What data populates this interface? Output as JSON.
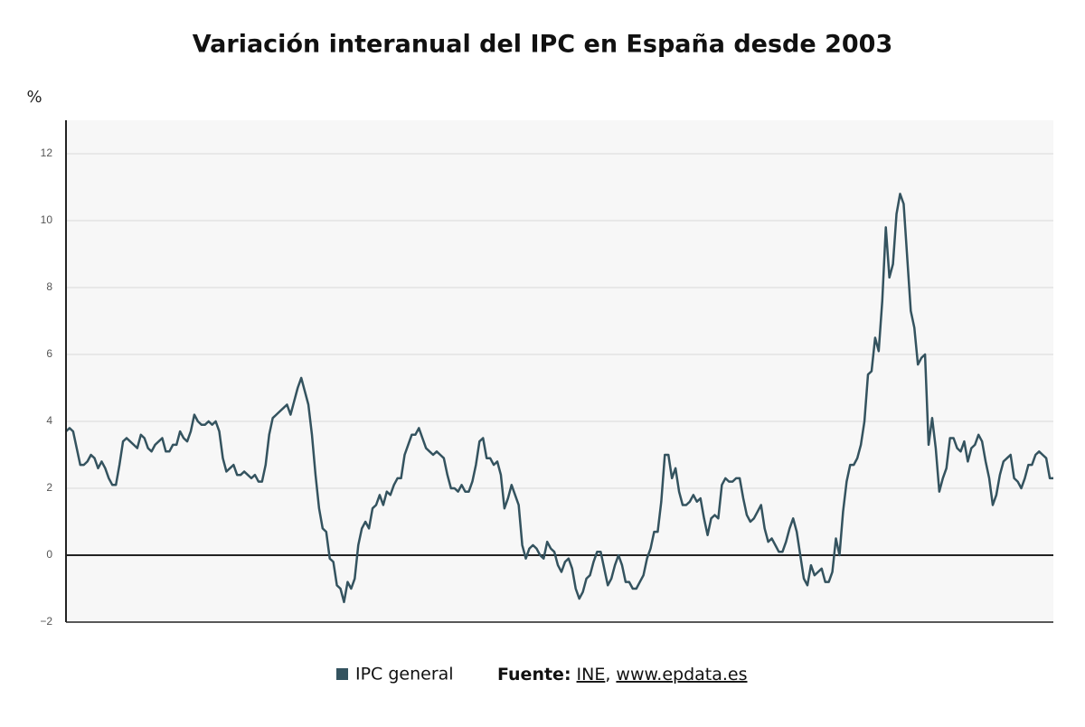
{
  "chart_data": {
    "type": "line",
    "title": "Variación interanual del IPC en España desde 2003",
    "y_label": "%",
    "ylim": [
      -2,
      13
    ],
    "yticks": [
      {
        "value": -2,
        "label": "−2"
      },
      0,
      2,
      4,
      6,
      8,
      10,
      12
    ],
    "grid": true,
    "series": [
      {
        "name": "IPC general",
        "color": "#34535f",
        "values": [
          3.7,
          3.8,
          3.7,
          3.2,
          2.7,
          2.7,
          2.8,
          3.0,
          2.9,
          2.6,
          2.8,
          2.6,
          2.3,
          2.1,
          2.1,
          2.7,
          3.4,
          3.5,
          3.4,
          3.3,
          3.2,
          3.6,
          3.5,
          3.2,
          3.1,
          3.3,
          3.4,
          3.5,
          3.1,
          3.1,
          3.3,
          3.3,
          3.7,
          3.5,
          3.4,
          3.7,
          4.2,
          4.0,
          3.9,
          3.9,
          4.0,
          3.9,
          4.0,
          3.7,
          2.9,
          2.5,
          2.6,
          2.7,
          2.4,
          2.4,
          2.5,
          2.4,
          2.3,
          2.4,
          2.2,
          2.2,
          2.7,
          3.6,
          4.1,
          4.2,
          4.3,
          4.4,
          4.5,
          4.2,
          4.6,
          5.0,
          5.3,
          4.9,
          4.5,
          3.6,
          2.4,
          1.4,
          0.8,
          0.7,
          -0.1,
          -0.2,
          -0.9,
          -1.0,
          -1.4,
          -0.8,
          -1.0,
          -0.7,
          0.3,
          0.8,
          1.0,
          0.8,
          1.4,
          1.5,
          1.8,
          1.5,
          1.9,
          1.8,
          2.1,
          2.3,
          2.3,
          3.0,
          3.3,
          3.6,
          3.6,
          3.8,
          3.5,
          3.2,
          3.1,
          3.0,
          3.1,
          3.0,
          2.9,
          2.4,
          2.0,
          2.0,
          1.9,
          2.1,
          1.9,
          1.9,
          2.2,
          2.7,
          3.4,
          3.5,
          2.9,
          2.9,
          2.7,
          2.8,
          2.4,
          1.4,
          1.7,
          2.1,
          1.8,
          1.5,
          0.3,
          -0.1,
          0.2,
          0.3,
          0.2,
          0.0,
          -0.1,
          0.4,
          0.2,
          0.1,
          -0.3,
          -0.5,
          -0.2,
          -0.1,
          -0.4,
          -1.0,
          -1.3,
          -1.1,
          -0.7,
          -0.6,
          -0.2,
          0.1,
          0.1,
          -0.4,
          -0.9,
          -0.7,
          -0.3,
          0.0,
          -0.3,
          -0.8,
          -0.8,
          -1.0,
          -1.0,
          -0.8,
          -0.6,
          -0.1,
          0.2,
          0.7,
          0.7,
          1.6,
          3.0,
          3.0,
          2.3,
          2.6,
          1.9,
          1.5,
          1.5,
          1.6,
          1.8,
          1.6,
          1.7,
          1.1,
          0.6,
          1.1,
          1.2,
          1.1,
          2.1,
          2.3,
          2.2,
          2.2,
          2.3,
          2.3,
          1.7,
          1.2,
          1.0,
          1.1,
          1.3,
          1.5,
          0.8,
          0.4,
          0.5,
          0.3,
          0.1,
          0.1,
          0.4,
          0.8,
          1.1,
          0.7,
          0.0,
          -0.7,
          -0.9,
          -0.3,
          -0.6,
          -0.5,
          -0.4,
          -0.8,
          -0.8,
          -0.5,
          0.5,
          0.0,
          1.3,
          2.2,
          2.7,
          2.7,
          2.9,
          3.3,
          4.0,
          5.4,
          5.5,
          6.5,
          6.1,
          7.6,
          9.8,
          8.3,
          8.7,
          10.2,
          10.8,
          10.5,
          8.9,
          7.3,
          6.8,
          5.7,
          5.9,
          6.0,
          3.3,
          4.1,
          3.2,
          1.9,
          2.3,
          2.6,
          3.5,
          3.5,
          3.2,
          3.1,
          3.4,
          2.8,
          3.2,
          3.3,
          3.6,
          3.4,
          2.8,
          2.3,
          1.5,
          1.8,
          2.4,
          2.8,
          2.9,
          3.0,
          2.3,
          2.2,
          2.0,
          2.3,
          2.7,
          2.7,
          3.0,
          3.1,
          3.0,
          2.9,
          2.3,
          2.3
        ]
      }
    ],
    "source": {
      "label": "Fuente:",
      "links": [
        "INE",
        "www.epdata.es"
      ],
      "separator": ","
    }
  }
}
